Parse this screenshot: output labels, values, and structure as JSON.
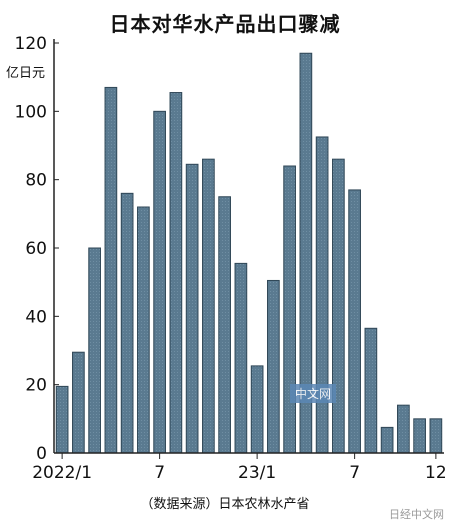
{
  "page": {
    "title": "日本对华水产品出口骤减",
    "unit": "亿日元",
    "source": "（数据来源）日本农林水产省",
    "watermark_mid": "中文网",
    "watermark_corner": "日经中文网"
  },
  "chart_data": {
    "type": "bar",
    "title": "日本对华水产品出口骤减",
    "ylabel": "亿日元",
    "xlabel": "",
    "ylim": [
      0,
      120
    ],
    "yticks": [
      0,
      20,
      40,
      60,
      80,
      100,
      120
    ],
    "grid": false,
    "bar_color": "#5a7a90",
    "categories": [
      "2022/1",
      "2022/2",
      "2022/3",
      "2022/4",
      "2022/5",
      "2022/6",
      "2022/7",
      "2022/8",
      "2022/9",
      "2022/10",
      "2022/11",
      "2022/12",
      "2023/1",
      "2023/2",
      "2023/3",
      "2023/4",
      "2023/5",
      "2023/6",
      "2023/7",
      "2023/8",
      "2023/9",
      "2023/10",
      "2023/11",
      "2023/12"
    ],
    "values": [
      19.5,
      29.5,
      60,
      107,
      76,
      72,
      100,
      105.5,
      84.5,
      86,
      75,
      55.5,
      25.5,
      50.5,
      84,
      117,
      92.5,
      86,
      77,
      36.5,
      7.5,
      14,
      10,
      10
    ],
    "xtick_labels": [
      {
        "index": 0,
        "label": "2022/1"
      },
      {
        "index": 6,
        "label": "7"
      },
      {
        "index": 12,
        "label": "23/1"
      },
      {
        "index": 18,
        "label": "7"
      },
      {
        "index": 23,
        "label": "12"
      }
    ]
  }
}
